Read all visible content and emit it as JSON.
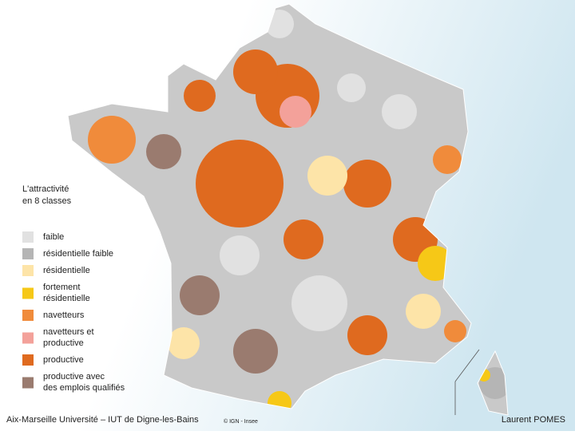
{
  "legend": {
    "title": [
      "L'attractivité",
      "en 8 classes"
    ],
    "items": [
      {
        "label": [
          "faible"
        ],
        "color": "#e1e1e1"
      },
      {
        "label": [
          "résidentielle faible"
        ],
        "color": "#b5b5b5"
      },
      {
        "label": [
          "résidentielle"
        ],
        "color": "#fde4a8"
      },
      {
        "label": [
          "fortement",
          "résidentielle"
        ],
        "color": "#f6c817"
      },
      {
        "label": [
          "navetteurs"
        ],
        "color": "#f08b3b"
      },
      {
        "label": [
          "navetteurs et",
          "productive"
        ],
        "color": "#f3a19a"
      },
      {
        "label": [
          "productive"
        ],
        "color": "#df6a1f"
      },
      {
        "label": [
          "productive avec",
          "des emplois qualifiés"
        ],
        "color": "#9a7b6f"
      }
    ]
  },
  "footer": {
    "left": "Aix-Marseille Université – IUT de Digne-les-Bains",
    "center": "© IGN - Insee",
    "right": "Laurent POMES"
  }
}
